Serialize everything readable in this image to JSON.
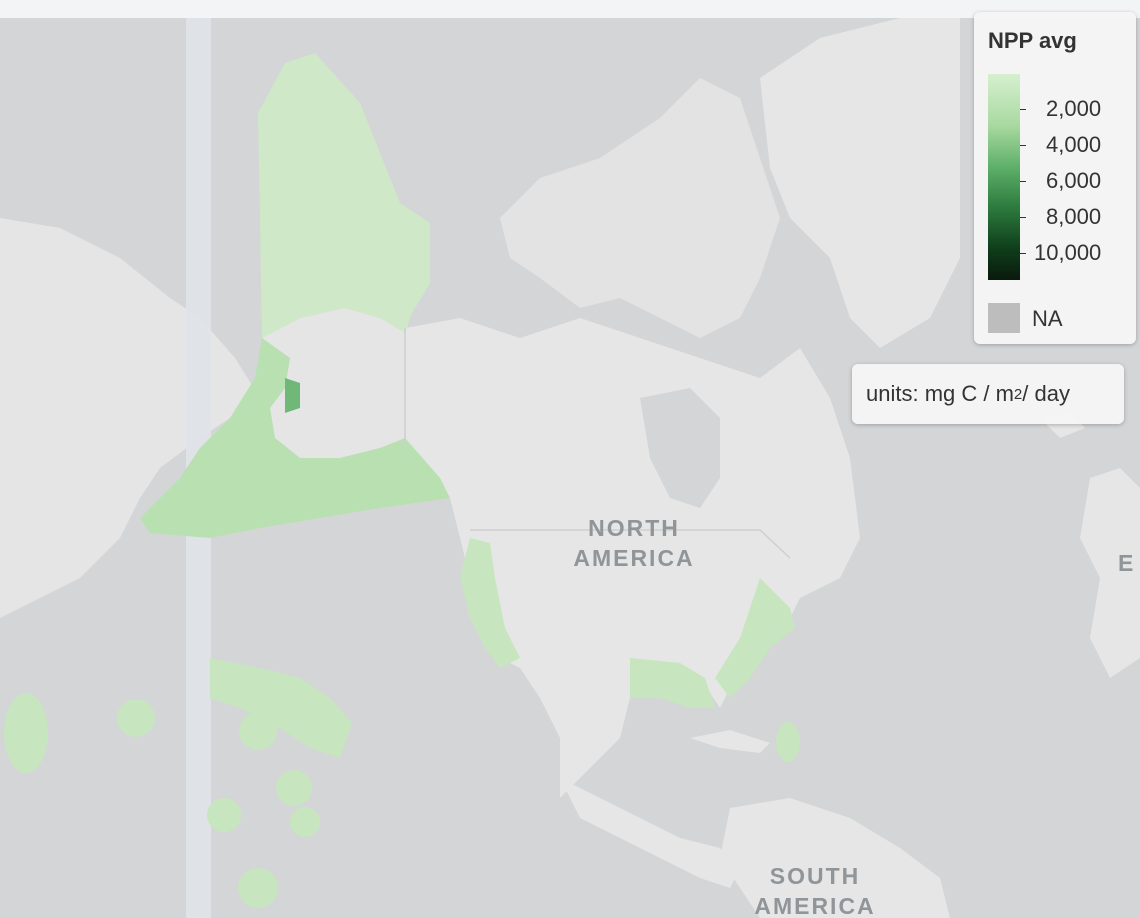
{
  "legend": {
    "title": "NPP avg",
    "ticks": [
      "2,000",
      "4,000",
      "6,000",
      "8,000",
      "10,000"
    ],
    "na_label": "NA",
    "colors": {
      "low": "#d6f0d0",
      "mid": "#5fb06a",
      "high": "#0a1a0d",
      "na": "#bdbdbd"
    }
  },
  "units": {
    "prefix": "units: mg C / m",
    "exponent": "2",
    "suffix": " / day"
  },
  "labels": {
    "north_america_line1": "NORTH",
    "north_america_line2": "AMERICA",
    "south_america_line1": "SOUTH",
    "south_america_line2": "AMERICA",
    "europe_partial": "E"
  }
}
